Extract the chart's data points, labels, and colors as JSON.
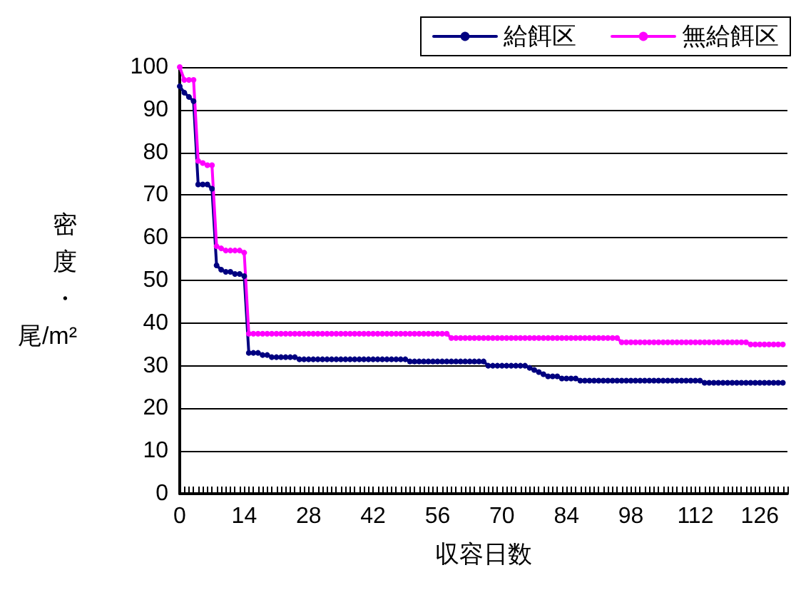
{
  "chart_data": {
    "type": "line",
    "xlabel": "収容日数",
    "ylabel": "密度・尾/m²",
    "x": [
      0,
      1,
      2,
      3,
      4,
      5,
      6,
      7,
      8,
      9,
      10,
      11,
      12,
      13,
      14,
      15,
      16,
      17,
      18,
      19,
      20,
      21,
      22,
      23,
      24,
      25,
      26,
      27,
      28,
      29,
      30,
      31,
      32,
      33,
      34,
      35,
      36,
      37,
      38,
      39,
      40,
      41,
      42,
      43,
      44,
      45,
      46,
      47,
      48,
      49,
      50,
      51,
      52,
      53,
      54,
      55,
      56,
      57,
      58,
      59,
      60,
      61,
      62,
      63,
      64,
      65,
      66,
      67,
      68,
      69,
      70,
      71,
      72,
      73,
      74,
      75,
      76,
      77,
      78,
      79,
      80,
      81,
      82,
      83,
      84,
      85,
      86,
      87,
      88,
      89,
      90,
      91,
      92,
      93,
      94,
      95,
      96,
      97,
      98,
      99,
      100,
      101,
      102,
      103,
      104,
      105,
      106,
      107,
      108,
      109,
      110,
      111,
      112,
      113,
      114,
      115,
      116,
      117,
      118,
      119,
      120,
      121,
      122,
      123,
      124,
      125,
      126,
      127,
      128,
      129,
      130,
      131
    ],
    "series": [
      {
        "name": "給餌区",
        "color": "#000080",
        "values": [
          95.5,
          94,
          93,
          92,
          72.5,
          72.5,
          72.5,
          71.5,
          53.5,
          52.5,
          52,
          52,
          51.5,
          51.5,
          51,
          33,
          33,
          33,
          32.5,
          32.5,
          32,
          32,
          32,
          32,
          32,
          32,
          31.5,
          31.5,
          31.5,
          31.5,
          31.5,
          31.5,
          31.5,
          31.5,
          31.5,
          31.5,
          31.5,
          31.5,
          31.5,
          31.5,
          31.5,
          31.5,
          31.5,
          31.5,
          31.5,
          31.5,
          31.5,
          31.5,
          31.5,
          31.5,
          31,
          31,
          31,
          31,
          31,
          31,
          31,
          31,
          31,
          31,
          31,
          31,
          31,
          31,
          31,
          31,
          31,
          30,
          30,
          30,
          30,
          30,
          30,
          30,
          30,
          30,
          29.5,
          29,
          28.5,
          28,
          27.5,
          27.5,
          27.5,
          27,
          27,
          27,
          27,
          26.5,
          26.5,
          26.5,
          26.5,
          26.5,
          26.5,
          26.5,
          26.5,
          26.5,
          26.5,
          26.5,
          26.5,
          26.5,
          26.5,
          26.5,
          26.5,
          26.5,
          26.5,
          26.5,
          26.5,
          26.5,
          26.5,
          26.5,
          26.5,
          26.5,
          26.5,
          26.5,
          26,
          26,
          26,
          26,
          26,
          26,
          26,
          26,
          26,
          26,
          26,
          26,
          26,
          26,
          26,
          26,
          26,
          26
        ]
      },
      {
        "name": "無給餌区",
        "color": "#ff00ff",
        "values": [
          100,
          97,
          97,
          97,
          78,
          77.5,
          77,
          77,
          58,
          57.5,
          57,
          57,
          57,
          57,
          56.5,
          37.5,
          37.5,
          37.5,
          37.5,
          37.5,
          37.5,
          37.5,
          37.5,
          37.5,
          37.5,
          37.5,
          37.5,
          37.5,
          37.5,
          37.5,
          37.5,
          37.5,
          37.5,
          37.5,
          37.5,
          37.5,
          37.5,
          37.5,
          37.5,
          37.5,
          37.5,
          37.5,
          37.5,
          37.5,
          37.5,
          37.5,
          37.5,
          37.5,
          37.5,
          37.5,
          37.5,
          37.5,
          37.5,
          37.5,
          37.5,
          37.5,
          37.5,
          37.5,
          37.5,
          36.5,
          36.5,
          36.5,
          36.5,
          36.5,
          36.5,
          36.5,
          36.5,
          36.5,
          36.5,
          36.5,
          36.5,
          36.5,
          36.5,
          36.5,
          36.5,
          36.5,
          36.5,
          36.5,
          36.5,
          36.5,
          36.5,
          36.5,
          36.5,
          36.5,
          36.5,
          36.5,
          36.5,
          36.5,
          36.5,
          36.5,
          36.5,
          36.5,
          36.5,
          36.5,
          36.5,
          36.5,
          35.5,
          35.5,
          35.5,
          35.5,
          35.5,
          35.5,
          35.5,
          35.5,
          35.5,
          35.5,
          35.5,
          35.5,
          35.5,
          35.5,
          35.5,
          35.5,
          35.5,
          35.5,
          35.5,
          35.5,
          35.5,
          35.5,
          35.5,
          35.5,
          35.5,
          35.5,
          35.5,
          35.5,
          35,
          35,
          35,
          35,
          35,
          35,
          35,
          35
        ]
      }
    ],
    "xlim": [
      0,
      132
    ],
    "xticks": [
      0,
      {
        "value": 1,
        "label": null
      },
      {
        "value": 2,
        "label": null
      },
      {
        "value": 3,
        "label": null
      },
      {
        "value": 4,
        "label": null
      },
      {
        "value": 5,
        "label": null
      },
      {
        "value": 6,
        "label": null
      },
      {
        "value": 7,
        "label": null
      },
      {
        "value": 8,
        "label": null
      },
      {
        "value": 9,
        "label": null
      },
      {
        "value": 10,
        "label": null
      },
      {
        "value": 11,
        "label": null
      },
      {
        "value": 12,
        "label": null
      },
      {
        "value": 13,
        "label": null
      },
      14,
      {
        "value": 15,
        "label": null
      },
      {
        "value": 16,
        "label": null
      },
      {
        "value": 17,
        "label": null
      },
      {
        "value": 18,
        "label": null
      },
      {
        "value": 19,
        "label": null
      },
      {
        "value": 20,
        "label": null
      },
      {
        "value": 21,
        "label": null
      },
      {
        "value": 22,
        "label": null
      },
      {
        "value": 23,
        "label": null
      },
      {
        "value": 24,
        "label": null
      },
      {
        "value": 25,
        "label": null
      },
      {
        "value": 26,
        "label": null
      },
      {
        "value": 27,
        "label": null
      },
      28,
      {
        "value": 29,
        "label": null
      },
      {
        "value": 30,
        "label": null
      },
      {
        "value": 31,
        "label": null
      },
      {
        "value": 32,
        "label": null
      },
      {
        "value": 33,
        "label": null
      },
      {
        "value": 34,
        "label": null
      },
      {
        "value": 35,
        "label": null
      },
      {
        "value": 36,
        "label": null
      },
      {
        "value": 37,
        "label": null
      },
      {
        "value": 38,
        "label": null
      },
      {
        "value": 39,
        "label": null
      },
      {
        "value": 40,
        "label": null
      },
      {
        "value": 41,
        "label": null
      },
      42,
      {
        "value": 43,
        "label": null
      },
      {
        "value": 44,
        "label": null
      },
      {
        "value": 45,
        "label": null
      },
      {
        "value": 46,
        "label": null
      },
      {
        "value": 47,
        "label": null
      },
      {
        "value": 48,
        "label": null
      },
      {
        "value": 49,
        "label": null
      },
      {
        "value": 50,
        "label": null
      },
      {
        "value": 51,
        "label": null
      },
      {
        "value": 52,
        "label": null
      },
      {
        "value": 53,
        "label": null
      },
      {
        "value": 54,
        "label": null
      },
      {
        "value": 55,
        "label": null
      },
      56,
      {
        "value": 57,
        "label": null
      },
      {
        "value": 58,
        "label": null
      },
      {
        "value": 59,
        "label": null
      },
      {
        "value": 60,
        "label": null
      },
      {
        "value": 61,
        "label": null
      },
      {
        "value": 62,
        "label": null
      },
      {
        "value": 63,
        "label": null
      },
      {
        "value": 64,
        "label": null
      },
      {
        "value": 65,
        "label": null
      },
      {
        "value": 66,
        "label": null
      },
      {
        "value": 67,
        "label": null
      },
      {
        "value": 68,
        "label": null
      },
      {
        "value": 69,
        "label": null
      },
      70,
      {
        "value": 71,
        "label": null
      },
      {
        "value": 72,
        "label": null
      },
      {
        "value": 73,
        "label": null
      },
      {
        "value": 74,
        "label": null
      },
      {
        "value": 75,
        "label": null
      },
      {
        "value": 76,
        "label": null
      },
      {
        "value": 77,
        "label": null
      },
      {
        "value": 78,
        "label": null
      },
      {
        "value": 79,
        "label": null
      },
      {
        "value": 80,
        "label": null
      },
      {
        "value": 81,
        "label": null
      },
      {
        "value": 82,
        "label": null
      },
      {
        "value": 83,
        "label": null
      },
      84,
      {
        "value": 85,
        "label": null
      },
      {
        "value": 86,
        "label": null
      },
      {
        "value": 87,
        "label": null
      },
      {
        "value": 88,
        "label": null
      },
      {
        "value": 89,
        "label": null
      },
      {
        "value": 90,
        "label": null
      },
      {
        "value": 91,
        "label": null
      },
      {
        "value": 92,
        "label": null
      },
      {
        "value": 93,
        "label": null
      },
      {
        "value": 94,
        "label": null
      },
      {
        "value": 95,
        "label": null
      },
      {
        "value": 96,
        "label": null
      },
      {
        "value": 97,
        "label": null
      },
      98,
      {
        "value": 99,
        "label": null
      },
      {
        "value": 100,
        "label": null
      },
      {
        "value": 101,
        "label": null
      },
      {
        "value": 102,
        "label": null
      },
      {
        "value": 103,
        "label": null
      },
      {
        "value": 104,
        "label": null
      },
      {
        "value": 105,
        "label": null
      },
      {
        "value": 106,
        "label": null
      },
      {
        "value": 107,
        "label": null
      },
      {
        "value": 108,
        "label": null
      },
      {
        "value": 109,
        "label": null
      },
      {
        "value": 110,
        "label": null
      },
      {
        "value": 111,
        "label": null
      },
      112,
      {
        "value": 113,
        "label": null
      },
      {
        "value": 114,
        "label": null
      },
      {
        "value": 115,
        "label": null
      },
      {
        "value": 116,
        "label": null
      },
      {
        "value": 117,
        "label": null
      },
      {
        "value": 118,
        "label": null
      },
      {
        "value": 119,
        "label": null
      },
      {
        "value": 120,
        "label": null
      },
      {
        "value": 121,
        "label": null
      },
      {
        "value": 122,
        "label": null
      },
      {
        "value": 123,
        "label": null
      },
      {
        "value": 124,
        "label": null
      },
      {
        "value": 125,
        "label": null
      },
      126,
      {
        "value": 127,
        "label": null
      },
      {
        "value": 128,
        "label": null
      },
      {
        "value": 129,
        "label": null
      },
      {
        "value": 130,
        "label": null
      },
      {
        "value": 131,
        "label": null
      },
      {
        "value": 132,
        "label": null
      }
    ],
    "ylim": [
      0,
      100
    ],
    "yticks": [
      0,
      10,
      20,
      30,
      40,
      50,
      60,
      70,
      80,
      90,
      100
    ],
    "grid": "y",
    "legend": "top right",
    "marker": "circle",
    "line_style": "solid"
  }
}
